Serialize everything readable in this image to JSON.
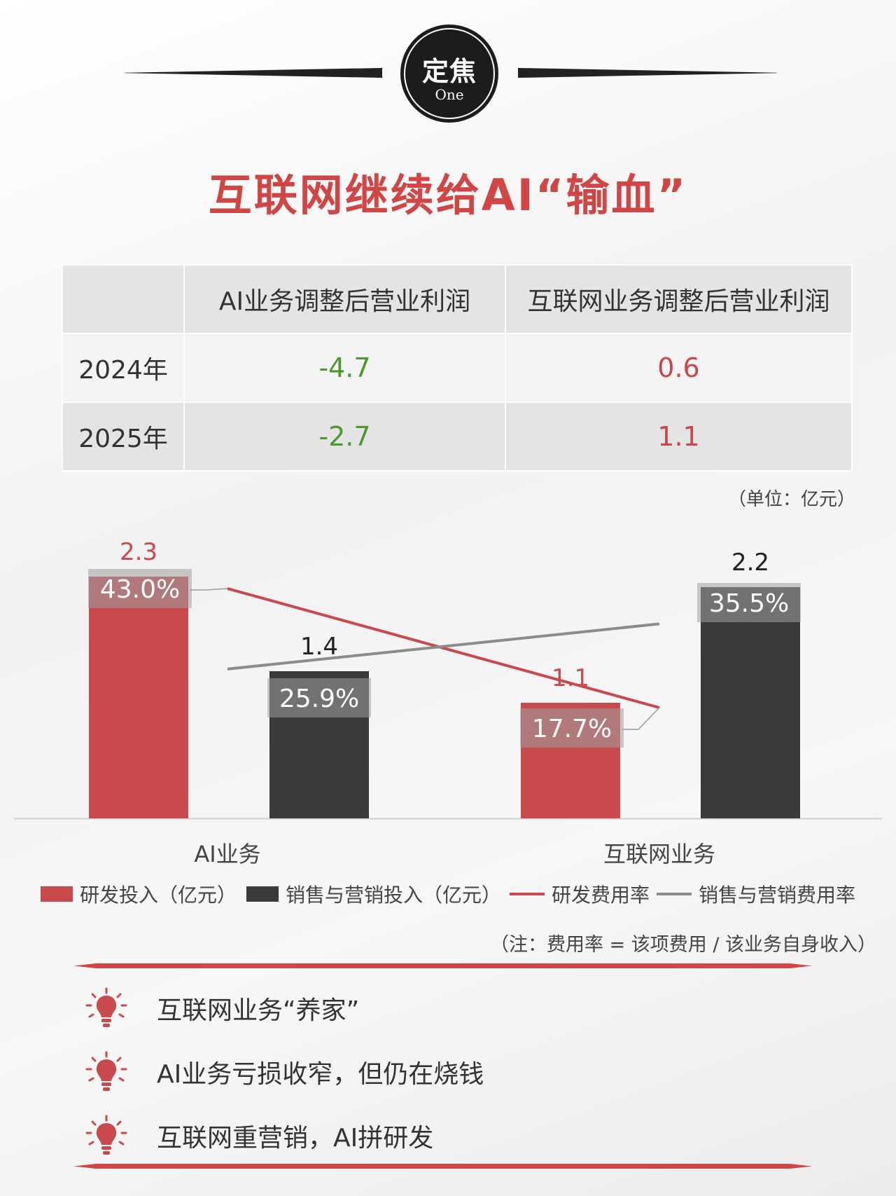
{
  "badge": {
    "main": "定焦",
    "sub": "One"
  },
  "title": "互联网继续给AI“输血”",
  "table": {
    "columns": [
      "",
      "AI业务调整后营业利润",
      "互联网业务调整后营业利润"
    ],
    "rows": [
      {
        "year": "2024年",
        "ai": "-4.7",
        "internet": "0.6"
      },
      {
        "year": "2025年",
        "ai": "-2.7",
        "internet": "1.1"
      }
    ]
  },
  "unit_label": "（单位：亿元）",
  "chart_data": {
    "type": "bar",
    "categories": [
      "AI业务",
      "互联网业务"
    ],
    "series": [
      {
        "name": "研发投入（亿元）",
        "kind": "bar",
        "color": "#c84a4c",
        "values": [
          2.3,
          1.1
        ],
        "value_labels": [
          "2.3",
          "1.1"
        ],
        "rate_labels": [
          "43.0%",
          "17.7%"
        ]
      },
      {
        "name": "销售与营销投入（亿元）",
        "kind": "bar",
        "color": "#3a3a3c",
        "values": [
          1.4,
          2.2
        ],
        "value_labels": [
          "1.4",
          "2.2"
        ],
        "rate_labels": [
          "25.9%",
          "35.5%"
        ]
      },
      {
        "name": "研发费用率",
        "kind": "line",
        "color": "#c84a4c",
        "values": [
          43.0,
          17.7
        ]
      },
      {
        "name": "销售与营销费用率",
        "kind": "line",
        "color": "#8c8c8c",
        "values": [
          25.9,
          35.5
        ]
      }
    ],
    "legend_position": "bottom",
    "grid": false
  },
  "legend": [
    {
      "label": "研发投入（亿元）",
      "type": "bar",
      "color": "#c84a4c"
    },
    {
      "label": "销售与营销投入（亿元）",
      "type": "bar",
      "color": "#3a3a3c"
    },
    {
      "label": "研发费用率",
      "type": "line",
      "color": "#c84a4c"
    },
    {
      "label": "销售与营销费用率",
      "type": "line",
      "color": "#8c8c8c"
    }
  ],
  "note": "（注：费用率 = 该项费用 / 该业务自身收入）",
  "takeaways": [
    {
      "icon": "lightbulb-icon",
      "text": "互联网业务“养家”"
    },
    {
      "icon": "lightbulb-icon",
      "text": "AI业务亏损收窄，但仍在烧钱"
    },
    {
      "icon": "lightbulb-icon",
      "text": "互联网重营销，AI拼研发"
    }
  ],
  "colors": {
    "accent": "#d24545",
    "dark": "#1c1c1c",
    "green": "#4a9a2e"
  }
}
